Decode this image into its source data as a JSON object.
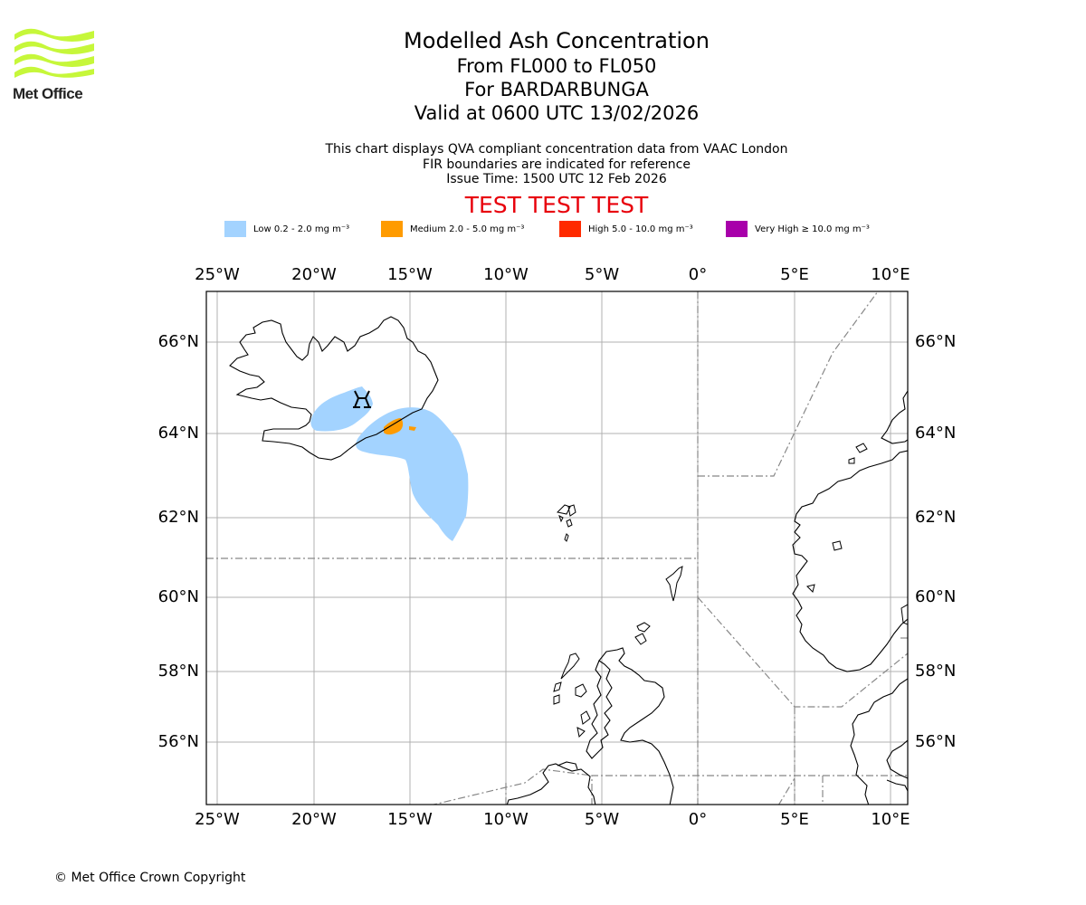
{
  "logo": {
    "text": "Met Office"
  },
  "title": {
    "main": "Modelled Ash Concentration",
    "levels": "From FL000 to FL050",
    "volcano": "For BARDARBUNGA",
    "valid": "Valid at 0600 UTC 13/02/2026"
  },
  "info": {
    "line1": "This chart displays QVA compliant concentration data from VAAC London",
    "line2": "FIR boundaries are indicated for reference",
    "line3": "Issue Time: 1500 UTC 12 Feb 2026"
  },
  "test_banner": "TEST TEST TEST",
  "legend": [
    {
      "label": "Low 0.2 - 2.0 mg m⁻³",
      "color": "#a3d3ff"
    },
    {
      "label": "Medium 2.0 - 5.0 mg m⁻³",
      "color": "#ff9b00"
    },
    {
      "label": "High 5.0 - 10.0 mg m⁻³",
      "color": "#ff2a00"
    },
    {
      "label": "Very High ≥ 10.0 mg m⁻³",
      "color": "#a800aa"
    }
  ],
  "map": {
    "lon_labels": [
      "25°W",
      "20°W",
      "15°W",
      "10°W",
      "5°W",
      "0°",
      "5°E",
      "10°E"
    ],
    "lat_labels": [
      "66°N",
      "64°N",
      "62°N",
      "60°N",
      "58°N",
      "56°N"
    ],
    "colors": {
      "grid": "#b0b0b0",
      "fir": "#888888",
      "coast": "#000000"
    }
  },
  "copyright": "© Met Office Crown Copyright"
}
